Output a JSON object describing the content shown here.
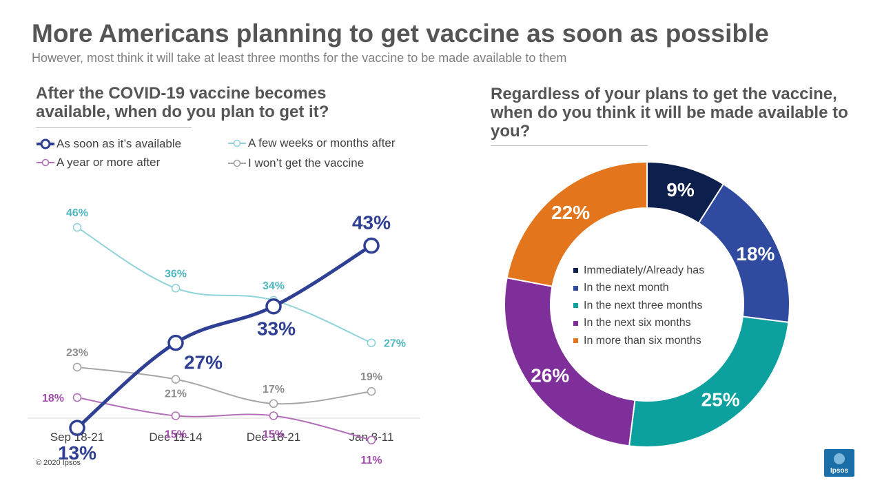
{
  "header": {
    "title": "More Americans planning to get vaccine as soon as possible",
    "subtitle": "However, most think it will take at least three months for the vaccine to be made available to them"
  },
  "line_panel": {
    "question": "After the COVID-19 vaccine becomes available, when do you plan to get it?"
  },
  "donut_panel": {
    "question": "Regardless of your plans to get the vaccine, when do you think it will be made available to you?"
  },
  "footer": {
    "copyright": "© 2020 Ipsos",
    "logo": "Ipsos"
  },
  "chart_data": [
    {
      "type": "line",
      "categories": [
        "Sep 18-21",
        "Dec 11-14",
        "Dec 18-21",
        "Jan 8-11"
      ],
      "ylim": [
        0,
        60
      ],
      "unit": "%",
      "legend": "top",
      "grid": false,
      "series": [
        {
          "name": "As soon as it’s available",
          "values": [
            13,
            27,
            33,
            43
          ],
          "color": "#2e3f94",
          "emphasis": true
        },
        {
          "name": "A few weeks or months after",
          "values": [
            46,
            36,
            34,
            27
          ],
          "color": "#8fd3d8",
          "label_color": "#4fb8bf"
        },
        {
          "name": "A year or more after",
          "values": [
            18,
            15,
            15,
            11
          ],
          "color": "#b16fb8",
          "label_color": "#a04ca8"
        },
        {
          "name": "I won’t get the vaccine",
          "values": [
            23,
            21,
            17,
            19
          ],
          "color": "#a6a6a6",
          "label_color": "#8c8c8c"
        }
      ]
    },
    {
      "type": "pie",
      "donut": true,
      "unit": "%",
      "slices": [
        {
          "label": "Immediately/Already has",
          "value": 9,
          "color": "#0d1f4d"
        },
        {
          "label": "In the next month",
          "value": 18,
          "color": "#2f4a9e"
        },
        {
          "label": "In the next three months",
          "value": 25,
          "color": "#0ca09f"
        },
        {
          "label": "In the next six months",
          "value": 26,
          "color": "#7e2f99"
        },
        {
          "label": "In more than six months",
          "value": 22,
          "color": "#e3761d"
        }
      ]
    }
  ]
}
